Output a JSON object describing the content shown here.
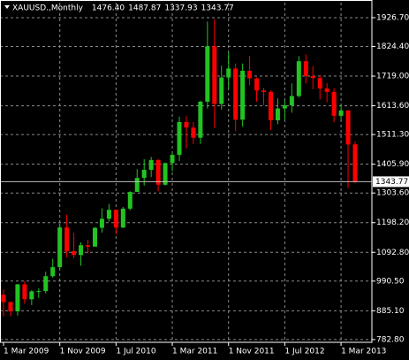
{
  "chart_data": {
    "type": "candlestick",
    "title": "XAUUSD.,Monthly",
    "header_values": [
      "1476.40",
      "1487.87",
      "1337.93",
      "1343.77"
    ],
    "categories": [
      "1 Mar 2009",
      null,
      null,
      null,
      null,
      null,
      null,
      null,
      "1 Nov 2009",
      null,
      null,
      null,
      null,
      null,
      null,
      null,
      "1 Jul 2010",
      null,
      null,
      null,
      null,
      null,
      null,
      null,
      "1 Mar 2011",
      null,
      null,
      null,
      null,
      null,
      null,
      null,
      "1 Nov 2011",
      null,
      null,
      null,
      null,
      null,
      null,
      null,
      "1 Jul 2012",
      null,
      null,
      null,
      null,
      null,
      null,
      null,
      "1 Mar 2013",
      null,
      null
    ],
    "open": [
      942,
      916,
      883,
      979,
      926,
      954,
      955,
      1008,
      1040,
      1181,
      1097,
      1083,
      1118,
      1113,
      1180,
      1212,
      1244,
      1181,
      1248,
      1307,
      1357,
      1386,
      1421,
      1333,
      1410,
      1439,
      1556,
      1536,
      1500,
      1628,
      1825,
      1620,
      1714,
      1746,
      1564,
      1738,
      1711,
      1668,
      1663,
      1562,
      1604,
      1615,
      1648,
      1772,
      1719,
      1712,
      1675,
      1663,
      1578,
      1597,
      1476.4
    ],
    "high": [
      960,
      918,
      981,
      990,
      959,
      965,
      1024,
      1070,
      1195,
      1227,
      1162,
      1128,
      1138,
      1182,
      1249,
      1265,
      1245,
      1254,
      1310,
      1388,
      1424,
      1432,
      1424,
      1412,
      1447,
      1575,
      1577,
      1556,
      1632,
      1913,
      1921,
      1756,
      1803,
      1764,
      1764,
      1791,
      1714,
      1677,
      1668,
      1640,
      1634,
      1693,
      1790,
      1796,
      1754,
      1723,
      1694,
      1676,
      1617,
      1598,
      1487.87
    ],
    "low": [
      865,
      865,
      868,
      910,
      905,
      931,
      947,
      1003,
      1033,
      1075,
      1072,
      1045,
      1089,
      1114,
      1163,
      1202,
      1157,
      1179,
      1242,
      1308,
      1330,
      1360,
      1309,
      1330,
      1381,
      1417,
      1462,
      1477,
      1478,
      1604,
      1535,
      1600,
      1672,
      1523,
      1539,
      1687,
      1628,
      1615,
      1527,
      1548,
      1565,
      1589,
      1643,
      1693,
      1672,
      1636,
      1626,
      1555,
      1564,
      1321,
      1337.93
    ],
    "close": [
      916,
      883,
      979,
      926,
      954,
      955,
      1008,
      1040,
      1181,
      1097,
      1083,
      1118,
      1113,
      1180,
      1212,
      1244,
      1181,
      1248,
      1307,
      1357,
      1386,
      1421,
      1333,
      1410,
      1439,
      1556,
      1536,
      1500,
      1628,
      1825,
      1620,
      1714,
      1746,
      1564,
      1738,
      1711,
      1668,
      1663,
      1562,
      1604,
      1615,
      1648,
      1772,
      1719,
      1712,
      1675,
      1663,
      1578,
      1597,
      1476,
      1343.77
    ],
    "up_color": "#22c322",
    "down_color": "#ff0000",
    "ylim": [
      773,
      1980
    ],
    "yticks": [
      {
        "value": 782.8,
        "label": "782.80"
      },
      {
        "value": 885.1,
        "label": "885.10"
      },
      {
        "value": 990.5,
        "label": "990.50"
      },
      {
        "value": 1092.8,
        "label": "1092.80"
      },
      {
        "value": 1198.2,
        "label": "1198.20"
      },
      {
        "value": 1303.6,
        "label": "1303.60"
      },
      {
        "value": 1405.9,
        "label": "1405.90"
      },
      {
        "value": 1511.3,
        "label": "1511.30"
      },
      {
        "value": 1613.6,
        "label": "1613.60"
      },
      {
        "value": 1719,
        "label": "1719.00"
      },
      {
        "value": 1824.4,
        "label": "1824.40"
      },
      {
        "value": 1926.7,
        "label": "1926.70"
      }
    ],
    "current_price": {
      "value": 1343.77,
      "label": "1343.77"
    },
    "grid": true
  }
}
